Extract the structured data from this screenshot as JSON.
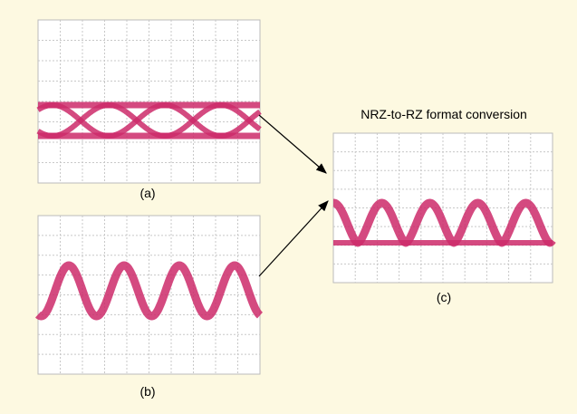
{
  "title": "NRZ-to-RZ format conversion",
  "panels": [
    {
      "label": "(a)"
    },
    {
      "label": "(b)"
    },
    {
      "label": "(c)"
    }
  ]
}
